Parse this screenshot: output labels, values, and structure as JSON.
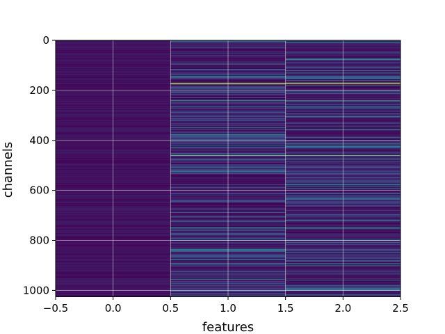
{
  "chart_data": {
    "type": "heatmap",
    "title": "",
    "xlabel": "features",
    "ylabel": "channels",
    "xlim": [
      -0.5,
      2.5
    ],
    "ylim": [
      1024,
      0
    ],
    "y_inverted": true,
    "grid": true,
    "colormap": "viridis",
    "colors": {
      "background": "#440154",
      "low": "#440154",
      "mid_low": "#3b528b",
      "mid": "#21918c",
      "mid_high": "#5ec962",
      "high": "#fde725",
      "grid": "#ffffff",
      "axis": "#000000"
    },
    "x_ticks": [
      -0.5,
      0.0,
      0.5,
      1.0,
      1.5,
      2.0,
      2.5
    ],
    "x_tick_labels": [
      "−0.5",
      "0.0",
      "0.5",
      "1.0",
      "1.5",
      "2.0",
      "2.5"
    ],
    "y_ticks": [
      0,
      200,
      400,
      600,
      800,
      1000
    ],
    "y_tick_labels": [
      "0",
      "200",
      "400",
      "600",
      "800",
      "1000"
    ],
    "feature_columns": [
      {
        "feature": 0,
        "level": "uniformly low"
      },
      {
        "feature": 1,
        "level": "varying by channel"
      },
      {
        "feature": 2,
        "level": "varying by channel"
      }
    ],
    "highlighted_channels": [
      {
        "channel": 172,
        "value": 1.0
      },
      {
        "channel": 240,
        "value": 0.55
      },
      {
        "channel": 460,
        "value": 0.7
      },
      {
        "channel": 800,
        "value": 0.5
      }
    ]
  }
}
